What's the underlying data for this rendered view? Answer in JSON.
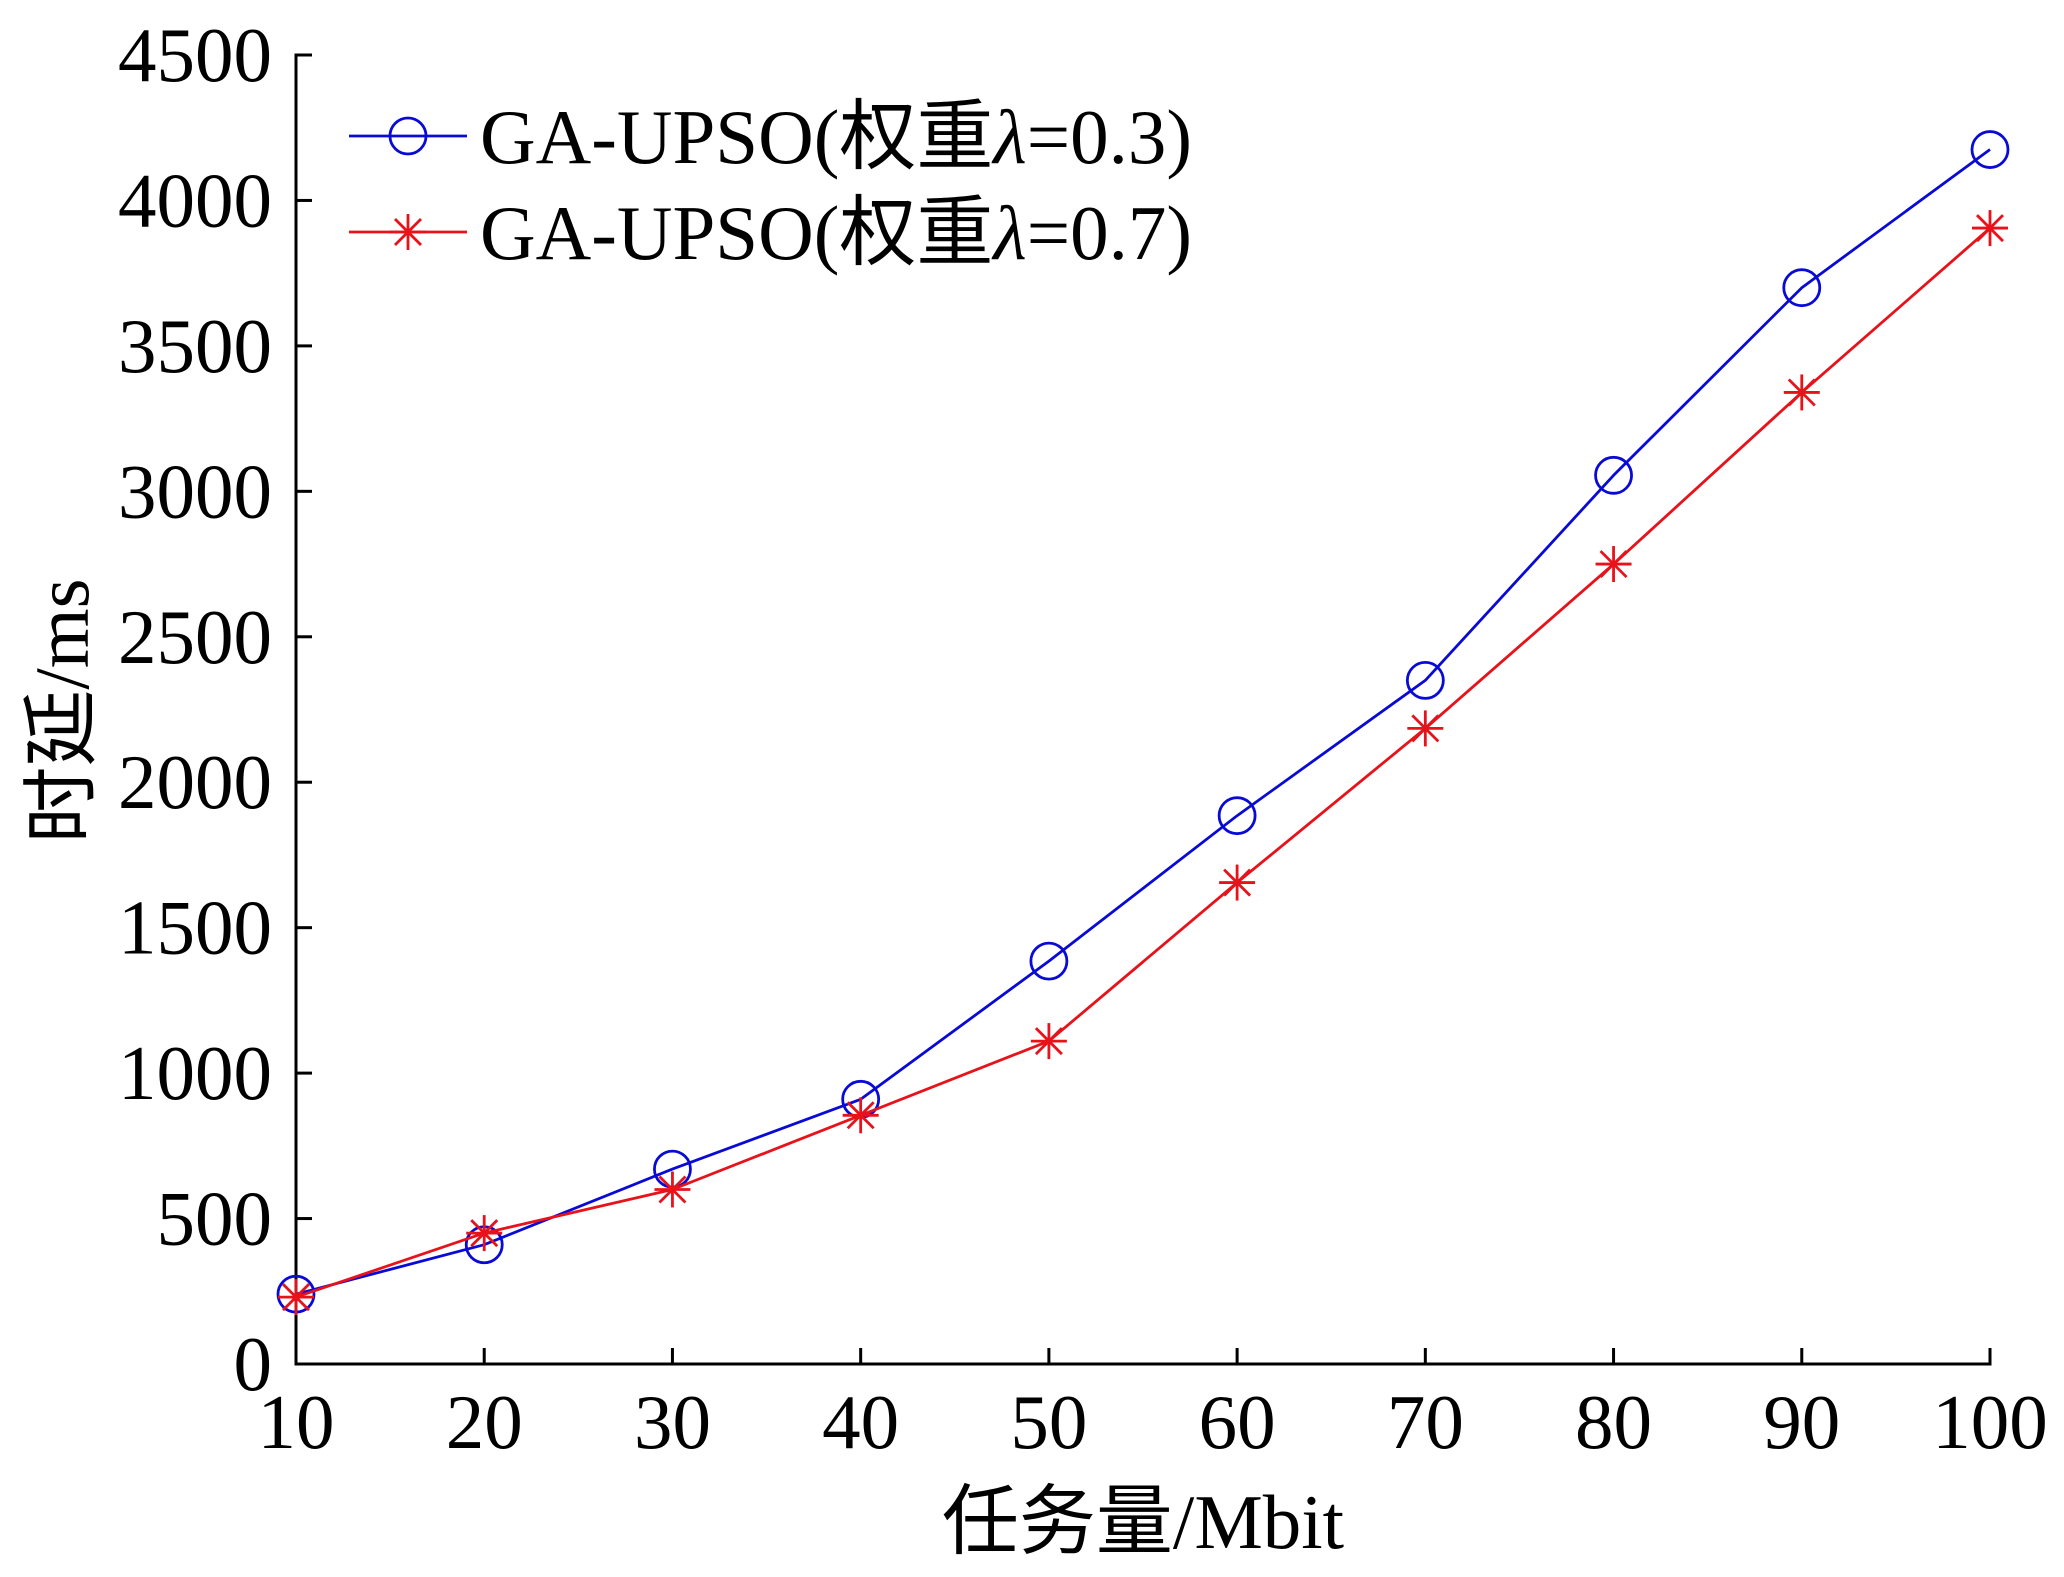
{
  "chart_data": {
    "type": "line",
    "title": "",
    "xlabel": "任务量/Mbit",
    "ylabel": "时延/ms",
    "x": [
      10,
      20,
      30,
      40,
      50,
      60,
      70,
      80,
      90,
      100
    ],
    "xlim": [
      10,
      100
    ],
    "ylim": [
      0,
      4500
    ],
    "xticks": [
      10,
      20,
      30,
      40,
      50,
      60,
      70,
      80,
      90,
      100
    ],
    "yticks": [
      0,
      500,
      1000,
      1500,
      2000,
      2500,
      3000,
      3500,
      4000,
      4500
    ],
    "grid": false,
    "legend_position": "top-left",
    "series": [
      {
        "name": "GA-UPSO(权重λ=0.3)",
        "color": "#0a0ad6",
        "marker": "circle",
        "values": [
          240,
          410,
          670,
          910,
          1385,
          1885,
          2350,
          3055,
          3700,
          4175
        ]
      },
      {
        "name": "GA-UPSO(权重λ=0.7)",
        "color": "#e8121a",
        "marker": "asterisk",
        "values": [
          230,
          450,
          600,
          855,
          1110,
          1655,
          2185,
          2750,
          3340,
          3905
        ]
      }
    ]
  }
}
